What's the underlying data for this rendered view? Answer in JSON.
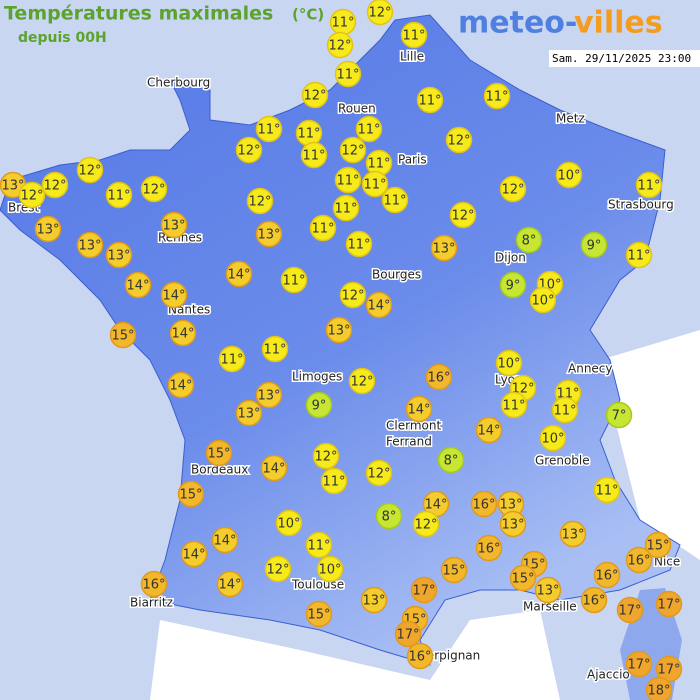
{
  "header": {
    "title": "Températures maximales",
    "unit": "(°C)",
    "subtitle": "depuis 00H",
    "logo_left": "meteo-",
    "logo_right": "villes",
    "timestamp": "Sam. 29/11/2025 23:00"
  },
  "cities": [
    "Cherbourg",
    "Lille",
    "Rouen",
    "Paris",
    "Metz",
    "Strasbourg",
    "Brest",
    "Rennes",
    "Nantes",
    "Bourges",
    "Dijon",
    "Limoges",
    "Lyon",
    "Annecy",
    "Clermont",
    "Ferrand",
    "Grenoble",
    "Bordeaux",
    "Biarritz",
    "Toulouse",
    "Marseille",
    "Nice",
    "Perpignan",
    "Ajaccio"
  ],
  "markers": [
    {
      "value": 11,
      "label": "11°"
    },
    {
      "value": 12,
      "label": "12°"
    },
    {
      "value": 12,
      "label": "12°"
    },
    {
      "value": 11,
      "label": "11°"
    },
    {
      "value": 11,
      "label": "11°"
    },
    {
      "value": 12,
      "label": "12°"
    },
    {
      "value": 11,
      "label": "11°"
    },
    {
      "value": 11,
      "label": "11°"
    },
    {
      "value": 11,
      "label": "11°"
    },
    {
      "value": 11,
      "label": "11°"
    },
    {
      "value": 11,
      "label": "11°"
    },
    {
      "value": 12,
      "label": "12°"
    },
    {
      "value": 11,
      "label": "11°"
    },
    {
      "value": 12,
      "label": "12°"
    },
    {
      "value": 11,
      "label": "11°"
    },
    {
      "value": 12,
      "label": "12°"
    },
    {
      "value": 12,
      "label": "12°"
    },
    {
      "value": 13,
      "label": "13°"
    },
    {
      "value": 12,
      "label": "12°"
    },
    {
      "value": 12,
      "label": "12°"
    },
    {
      "value": 11,
      "label": "11°"
    },
    {
      "value": 12,
      "label": "12°"
    },
    {
      "value": 11,
      "label": "11°"
    },
    {
      "value": 11,
      "label": "11°"
    },
    {
      "value": 10,
      "label": "10°"
    },
    {
      "value": 11,
      "label": "11°"
    },
    {
      "value": 12,
      "label": "12°"
    },
    {
      "value": 11,
      "label": "11°"
    },
    {
      "value": 12,
      "label": "12°"
    },
    {
      "value": 11,
      "label": "11°"
    },
    {
      "value": 13,
      "label": "13°"
    },
    {
      "value": 13,
      "label": "13°"
    },
    {
      "value": 13,
      "label": "13°"
    },
    {
      "value": 11,
      "label": "11°"
    },
    {
      "value": 12,
      "label": "12°"
    },
    {
      "value": 13,
      "label": "13°"
    },
    {
      "value": 13,
      "label": "13°"
    },
    {
      "value": 11,
      "label": "11°"
    },
    {
      "value": 13,
      "label": "13°"
    },
    {
      "value": 8,
      "label": "8°"
    },
    {
      "value": 9,
      "label": "9°"
    },
    {
      "value": 11,
      "label": "11°"
    },
    {
      "value": 14,
      "label": "14°"
    },
    {
      "value": 14,
      "label": "14°"
    },
    {
      "value": 11,
      "label": "11°"
    },
    {
      "value": 14,
      "label": "14°"
    },
    {
      "value": 12,
      "label": "12°"
    },
    {
      "value": 14,
      "label": "14°"
    },
    {
      "value": 9,
      "label": "9°"
    },
    {
      "value": 10,
      "label": "10°"
    },
    {
      "value": 10,
      "label": "10°"
    },
    {
      "value": 15,
      "label": "15°"
    },
    {
      "value": 14,
      "label": "14°"
    },
    {
      "value": 13,
      "label": "13°"
    },
    {
      "value": 11,
      "label": "11°"
    },
    {
      "value": 11,
      "label": "11°"
    },
    {
      "value": 10,
      "label": "10°"
    },
    {
      "value": 14,
      "label": "14°"
    },
    {
      "value": 13,
      "label": "13°"
    },
    {
      "value": 12,
      "label": "12°"
    },
    {
      "value": 16,
      "label": "16°"
    },
    {
      "value": 12,
      "label": "12°"
    },
    {
      "value": 11,
      "label": "11°"
    },
    {
      "value": 9,
      "label": "9°"
    },
    {
      "value": 13,
      "label": "13°"
    },
    {
      "value": 14,
      "label": "14°"
    },
    {
      "value": 11,
      "label": "11°"
    },
    {
      "value": 11,
      "label": "11°"
    },
    {
      "value": 7,
      "label": "7°"
    },
    {
      "value": 15,
      "label": "15°"
    },
    {
      "value": 14,
      "label": "14°"
    },
    {
      "value": 10,
      "label": "10°"
    },
    {
      "value": 12,
      "label": "12°"
    },
    {
      "value": 8,
      "label": "8°"
    },
    {
      "value": 14,
      "label": "14°"
    },
    {
      "value": 12,
      "label": "12°"
    },
    {
      "value": 11,
      "label": "11°"
    },
    {
      "value": 15,
      "label": "15°"
    },
    {
      "value": 11,
      "label": "11°"
    },
    {
      "value": 14,
      "label": "14°"
    },
    {
      "value": 16,
      "label": "16°"
    },
    {
      "value": 13,
      "label": "13°"
    },
    {
      "value": 8,
      "label": "8°"
    },
    {
      "value": 10,
      "label": "10°"
    },
    {
      "value": 12,
      "label": "12°"
    },
    {
      "value": 13,
      "label": "13°"
    },
    {
      "value": 13,
      "label": "13°"
    },
    {
      "value": 14,
      "label": "14°"
    },
    {
      "value": 11,
      "label": "11°"
    },
    {
      "value": 14,
      "label": "14°"
    },
    {
      "value": 16,
      "label": "16°"
    },
    {
      "value": 15,
      "label": "15°"
    },
    {
      "value": 16,
      "label": "16°"
    },
    {
      "value": 15,
      "label": "15°"
    },
    {
      "value": 12,
      "label": "12°"
    },
    {
      "value": 10,
      "label": "10°"
    },
    {
      "value": 15,
      "label": "15°"
    },
    {
      "value": 15,
      "label": "15°"
    },
    {
      "value": 16,
      "label": "16°"
    },
    {
      "value": 16,
      "label": "16°"
    },
    {
      "value": 14,
      "label": "14°"
    },
    {
      "value": 17,
      "label": "17°"
    },
    {
      "value": 13,
      "label": "13°"
    },
    {
      "value": 13,
      "label": "13°"
    },
    {
      "value": 16,
      "label": "16°"
    },
    {
      "value": 17,
      "label": "17°"
    },
    {
      "value": 15,
      "label": "15°"
    },
    {
      "value": 17,
      "label": "17°"
    },
    {
      "value": 15,
      "label": "15°"
    },
    {
      "value": 17,
      "label": "17°"
    },
    {
      "value": 16,
      "label": "16°"
    },
    {
      "value": 17,
      "label": "17°"
    },
    {
      "value": 17,
      "label": "17°"
    },
    {
      "value": 18,
      "label": "18°"
    }
  ]
}
